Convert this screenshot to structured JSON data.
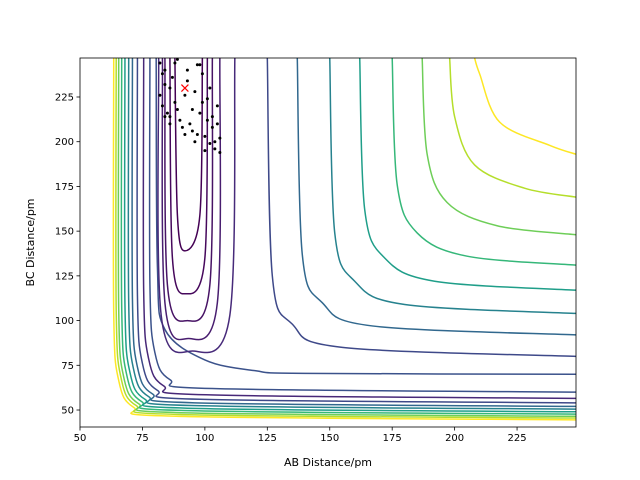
{
  "chart_data": {
    "type": "contour",
    "x_label": "AB Distance/pm",
    "y_label": "BC Distance/pm",
    "xlim": [
      50,
      248.6
    ],
    "ylim": [
      40.5,
      246.8
    ],
    "xticks": [
      50,
      75,
      100,
      125,
      150,
      175,
      200,
      225
    ],
    "yticks": [
      50,
      75,
      100,
      125,
      150,
      175,
      200,
      225
    ],
    "series": [
      {
        "color": "#fde725",
        "x": [
          63.5,
          63.5,
          65.5,
          71.5,
          88.5,
          248.6
        ],
        "y": [
          246.8,
          104.5,
          66.5,
          51.5,
          46.5,
          44.5
        ]
      },
      {
        "color": "#b5de2b",
        "x": [
          64.5,
          64.5,
          66.5,
          72.5,
          89.5,
          248.6
        ],
        "y": [
          246.8,
          105.5,
          67.5,
          52.5,
          47.5,
          45.5
        ]
      },
      {
        "color": "#6ece58",
        "x": [
          65.5,
          65.5,
          67.5,
          73.5,
          90.5,
          248.6
        ],
        "y": [
          246.8,
          106.5,
          68.5,
          53.5,
          48.5,
          46.5
        ]
      },
      {
        "color": "#35b779",
        "x": [
          66.7,
          66.7,
          68.7,
          74.7,
          91.7,
          248.6
        ],
        "y": [
          246.8,
          107.7,
          69.7,
          54.7,
          49.7,
          47.7
        ]
      },
      {
        "color": "#1f9e89",
        "x": [
          68,
          68,
          70,
          76,
          93,
          248.6
        ],
        "y": [
          246.8,
          109,
          71,
          56,
          51,
          49
        ]
      },
      {
        "color": "#26828e",
        "x": [
          69.5,
          69.5,
          71.5,
          77.5,
          94.5,
          248.6
        ],
        "y": [
          246.8,
          110.5,
          72.5,
          57.5,
          52.5,
          50.5
        ]
      },
      {
        "color": "#31688e",
        "x": [
          71,
          71,
          73,
          79,
          96,
          248.6
        ],
        "y": [
          246.8,
          112,
          74,
          59,
          54,
          52
        ]
      },
      {
        "color": "#3e4989",
        "x": [
          73,
          73,
          75,
          81,
          98,
          248.6
        ],
        "y": [
          246.8,
          114,
          76,
          61,
          56,
          54
        ]
      },
      {
        "color": "#482878",
        "x": [
          75.5,
          75.5,
          77.5,
          83.5,
          100.5,
          248.6
        ],
        "y": [
          246.8,
          116.5,
          78.5,
          63.5,
          58.5,
          56.5
        ]
      },
      {
        "color": "#3b528b",
        "x": [
          78,
          78,
          80,
          86,
          103,
          248.6
        ],
        "y": [
          246.8,
          120,
          82,
          67,
          62,
          60
        ]
      },
      {
        "color": "#3b528b",
        "x": [
          80.5,
          81,
          84,
          100,
          120,
          140,
          248.6
        ],
        "y": [
          246.8,
          130,
          95,
          78,
          72,
          70.5,
          70
        ]
      },
      {
        "color": "#440154",
        "x": [
          88,
          89,
          92,
          98,
          99
        ],
        "y": [
          246.8,
          159,
          139,
          159,
          246.8
        ]
      },
      {
        "color": "#46085c",
        "x": [
          86,
          87,
          92.5,
          100,
          101
        ],
        "y": [
          246.8,
          135,
          115,
          135,
          246.8
        ]
      },
      {
        "color": "#471365",
        "x": [
          84,
          85,
          93,
          102,
          103
        ],
        "y": [
          246.8,
          120,
          100,
          120,
          246.8
        ]
      },
      {
        "color": "#481d6f",
        "x": [
          83,
          84,
          93.5,
          105,
          106
        ],
        "y": [
          246.8,
          110,
          90,
          110,
          246.8
        ]
      },
      {
        "color": "#472a7a",
        "x": [
          81.5,
          82.5,
          95,
          110,
          112
        ],
        "y": [
          246.8,
          103,
          83,
          103,
          246.8
        ]
      },
      {
        "color": "#3e4989",
        "x": [
          125,
          127,
          135,
          155,
          248.6
        ],
        "y": [
          246.8,
          125,
          98,
          85,
          80
        ]
      },
      {
        "color": "#31688e",
        "x": [
          137,
          139,
          147,
          167,
          248.6
        ],
        "y": [
          246.8,
          137,
          110,
          97,
          92
        ]
      },
      {
        "color": "#26828e",
        "x": [
          150,
          152,
          160,
          180,
          248.6
        ],
        "y": [
          246.8,
          149,
          122,
          109,
          104
        ]
      },
      {
        "color": "#1f9e89",
        "x": [
          162,
          164,
          172,
          192,
          248.6
        ],
        "y": [
          246.8,
          162,
          135,
          122,
          117
        ]
      },
      {
        "color": "#35b779",
        "x": [
          175,
          177,
          185,
          205,
          248.6
        ],
        "y": [
          246.8,
          176,
          149,
          136,
          131
        ]
      },
      {
        "color": "#6ece58",
        "x": [
          187,
          189,
          197,
          217,
          248.6
        ],
        "y": [
          246.8,
          193,
          166,
          153,
          148
        ]
      },
      {
        "color": "#b5de2b",
        "x": [
          198,
          200,
          208,
          228,
          248.6
        ],
        "y": [
          246.8,
          214,
          187,
          174,
          169
        ]
      },
      {
        "color": "#fde725",
        "x": [
          208,
          210,
          218,
          238,
          248.6
        ],
        "y": [
          246.8,
          238,
          211,
          198,
          193
        ]
      }
    ],
    "points": {
      "color": "#000000",
      "x": [
        82,
        83,
        84,
        82,
        83,
        85,
        86,
        84,
        87,
        88,
        86,
        89,
        90,
        88,
        91,
        93,
        92,
        94,
        95,
        93,
        96,
        97,
        98,
        96,
        99,
        100,
        101,
        99,
        102,
        103,
        104,
        102,
        105,
        106,
        105,
        104,
        106,
        103,
        101,
        98,
        95,
        92,
        89,
        86,
        84,
        100,
        97
      ],
      "y": [
        244,
        238,
        232,
        226,
        220,
        216,
        214,
        240,
        236,
        222,
        230,
        218,
        212,
        244,
        208,
        240,
        226,
        210,
        206,
        234,
        228,
        204,
        216,
        200,
        222,
        203,
        212,
        238,
        199,
        208,
        196,
        230,
        210,
        194,
        220,
        200,
        202,
        214,
        224,
        243,
        218,
        204,
        246,
        210,
        214,
        195,
        243
      ]
    },
    "marker": {
      "color": "red",
      "x": 92,
      "y": 230
    }
  }
}
